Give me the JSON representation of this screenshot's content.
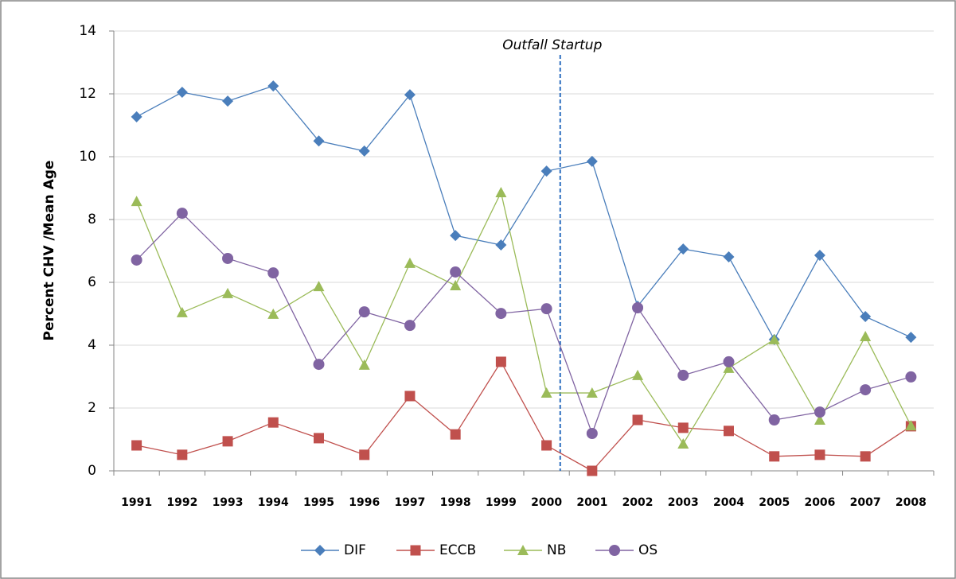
{
  "chart_data": {
    "type": "line",
    "y_label": "Percent CHV /Mean Age",
    "annotation": "Outfall Startup",
    "categories": [
      "1991",
      "1992",
      "1993",
      "1994",
      "1995",
      "1996",
      "1997",
      "1998",
      "1999",
      "2000",
      "2001",
      "2002",
      "2003",
      "2004",
      "2005",
      "2006",
      "2007",
      "2008"
    ],
    "series": [
      {
        "name": "DIF",
        "color": "#4a7ebb",
        "marker": "diamond",
        "values": [
          11.27,
          12.05,
          11.77,
          12.25,
          10.5,
          10.18,
          11.97,
          7.49,
          7.19,
          9.54,
          9.85,
          5.24,
          7.06,
          6.81,
          4.18,
          6.86,
          4.91,
          4.25
        ]
      },
      {
        "name": "ECCB",
        "color": "#c0504d",
        "marker": "square",
        "values": [
          0.81,
          0.51,
          0.94,
          1.54,
          1.04,
          0.51,
          2.38,
          1.16,
          3.47,
          0.81,
          0,
          1.62,
          1.37,
          1.27,
          0.46,
          0.51,
          0.46,
          1.42
        ]
      },
      {
        "name": "NB",
        "color": "#9bbb59",
        "marker": "triangle",
        "values": [
          8.58,
          5.04,
          5.65,
          4.99,
          5.87,
          3.37,
          6.61,
          5.9,
          8.86,
          2.48,
          2.48,
          3.04,
          0.86,
          3.27,
          4.18,
          1.62,
          4.28,
          1.44
        ]
      },
      {
        "name": "OS",
        "color": "#8064a2",
        "marker": "circle",
        "values": [
          6.71,
          8.2,
          6.76,
          6.3,
          3.39,
          5.06,
          4.63,
          6.33,
          5.01,
          5.16,
          1.19,
          5.19,
          3.04,
          3.47,
          1.62,
          1.87,
          2.58,
          2.99
        ]
      }
    ],
    "ylim": [
      0,
      14
    ],
    "yticks": [
      0,
      2,
      4,
      6,
      8,
      10,
      12,
      14
    ],
    "grid": true,
    "legend": "bottom"
  }
}
